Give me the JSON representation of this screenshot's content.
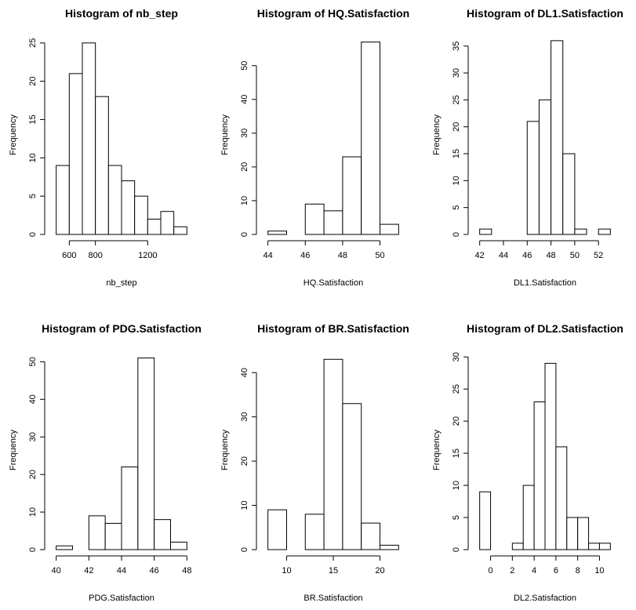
{
  "chart_data": [
    {
      "type": "histogram",
      "title": "Histogram of nb_step",
      "xlabel": "nb_step",
      "ylabel": "Frequency",
      "bins": [
        500,
        600,
        700,
        800,
        900,
        1000,
        1100,
        1200,
        1300,
        1400,
        1500
      ],
      "counts": [
        9,
        21,
        25,
        18,
        9,
        7,
        5,
        2,
        3,
        1
      ],
      "xlim": [
        460,
        1540
      ],
      "ylim": [
        0,
        26
      ],
      "xticks": [
        600,
        800,
        1200
      ],
      "yticks": [
        0,
        5,
        10,
        15,
        20,
        25
      ],
      "color": "#ffffff",
      "edgecolor": "#000000"
    },
    {
      "type": "histogram",
      "title": "Histogram of HQ.Satisfaction",
      "xlabel": "HQ.Satisfaction",
      "ylabel": "Frequency",
      "bins": [
        44,
        45,
        46,
        47,
        48,
        49,
        50,
        51
      ],
      "counts": [
        1,
        0,
        9,
        7,
        23,
        57,
        3
      ],
      "xlim": [
        43.72,
        51.28
      ],
      "ylim": [
        0,
        59
      ],
      "xticks": [
        44,
        46,
        48,
        50
      ],
      "yticks": [
        0,
        10,
        20,
        30,
        40,
        50
      ],
      "color": "#ffffff",
      "edgecolor": "#000000"
    },
    {
      "type": "histogram",
      "title": "Histogram of DL1.Satisfaction",
      "xlabel": "DL1.Satisfaction",
      "ylabel": "Frequency",
      "bins": [
        42,
        43,
        44,
        45,
        46,
        47,
        48,
        49,
        50,
        51,
        52,
        53
      ],
      "counts": [
        1,
        0,
        0,
        0,
        21,
        25,
        36,
        15,
        1,
        0,
        1
      ],
      "xlim": [
        41.56,
        53.44
      ],
      "ylim": [
        0,
        37
      ],
      "xticks": [
        42,
        44,
        46,
        48,
        50,
        52
      ],
      "yticks": [
        0,
        5,
        10,
        15,
        20,
        25,
        30,
        35
      ],
      "color": "#ffffff",
      "edgecolor": "#000000"
    },
    {
      "type": "histogram",
      "title": "Histogram of PDG.Satisfaction",
      "xlabel": "PDG.Satisfaction",
      "ylabel": "Frequency",
      "bins": [
        40,
        41,
        42,
        43,
        44,
        45,
        46,
        47,
        48
      ],
      "counts": [
        1,
        0,
        9,
        7,
        22,
        51,
        8,
        2
      ],
      "xlim": [
        39.68,
        48.32
      ],
      "ylim": [
        0,
        53
      ],
      "xticks": [
        40,
        42,
        44,
        46,
        48
      ],
      "yticks": [
        0,
        10,
        20,
        30,
        40,
        50
      ],
      "color": "#ffffff",
      "edgecolor": "#000000"
    },
    {
      "type": "histogram",
      "title": "Histogram of BR.Satisfaction",
      "xlabel": "BR.Satisfaction",
      "ylabel": "Frequency",
      "bins": [
        8,
        10,
        12,
        14,
        16,
        18,
        20,
        22
      ],
      "counts": [
        9,
        0,
        8,
        43,
        33,
        6,
        1
      ],
      "xlim": [
        7.44,
        22.56
      ],
      "ylim": [
        0,
        45
      ],
      "xticks": [
        10,
        15,
        20
      ],
      "yticks": [
        0,
        10,
        20,
        30,
        40
      ],
      "color": "#ffffff",
      "edgecolor": "#000000"
    },
    {
      "type": "histogram",
      "title": "Histogram of DL2.Satisfaction",
      "xlabel": "DL2.Satisfaction",
      "ylabel": "Frequency",
      "bins": [
        -1,
        0,
        1,
        2,
        3,
        4,
        5,
        6,
        7,
        8,
        9,
        10,
        11
      ],
      "counts": [
        9,
        0,
        0,
        1,
        10,
        23,
        29,
        16,
        5,
        5,
        1,
        1
      ],
      "xlim": [
        -1.48,
        11.48
      ],
      "ylim": [
        0,
        31
      ],
      "xticks": [
        0,
        2,
        4,
        6,
        8,
        10
      ],
      "yticks": [
        0,
        5,
        10,
        15,
        20,
        25,
        30
      ],
      "color": "#ffffff",
      "edgecolor": "#000000"
    }
  ]
}
